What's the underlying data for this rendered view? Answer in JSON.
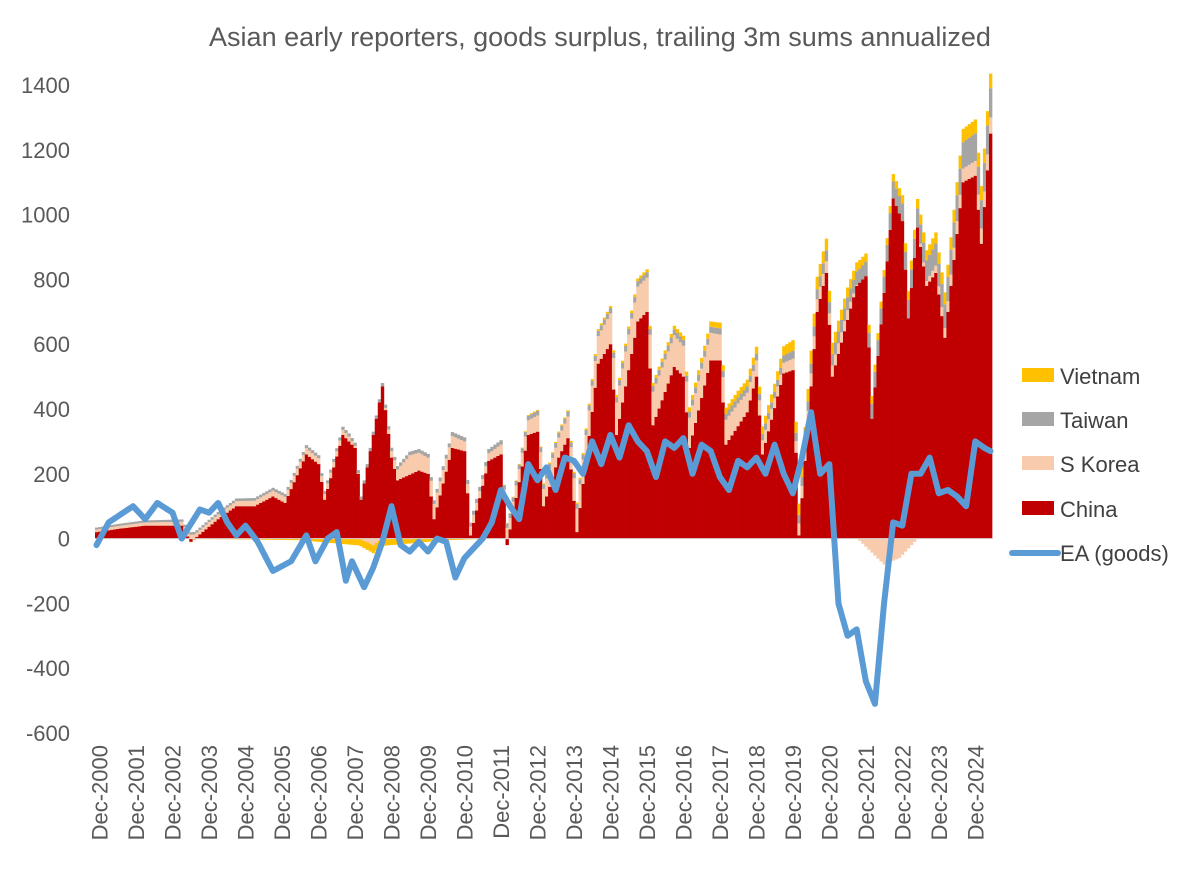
{
  "chart_data": {
    "type": "bar",
    "title": "Asian early reporters, goods surplus, trailing 3m sums annualized",
    "xlabel": "",
    "ylabel": "",
    "ylim": [
      -600,
      1400
    ],
    "yticks": [
      -600,
      -400,
      -200,
      0,
      200,
      400,
      600,
      800,
      1000,
      1200,
      1400
    ],
    "x_start": "2000-11",
    "x_end": "2025-05",
    "x_tick_labels": [
      "Dec-2000",
      "Dec-2001",
      "Dec-2002",
      "Dec-2003",
      "Dec-2004",
      "Dec-2005",
      "Dec-2006",
      "Dec-2007",
      "Dec-2008",
      "Dec-2009",
      "Dec-2010",
      "Dec-2011",
      "Dec-2012",
      "Dec-2013",
      "Dec-2014",
      "Dec-2015",
      "Dec-2016",
      "Dec-2017",
      "Dec-2018",
      "Dec-2019",
      "Dec-2020",
      "Dec-2021",
      "Dec-2022",
      "Dec-2023",
      "Dec-2024"
    ],
    "grid": false,
    "legend_position": "right",
    "stacked_series": [
      {
        "name": "China",
        "color": "#C00000",
        "anchors": [
          [
            "2000-11",
            20
          ],
          [
            "2001-06",
            30
          ],
          [
            "2002-03",
            40
          ],
          [
            "2003-03",
            40
          ],
          [
            "2003-06",
            -10
          ],
          [
            "2004-03",
            60
          ],
          [
            "2004-09",
            100
          ],
          [
            "2005-03",
            100
          ],
          [
            "2005-09",
            130
          ],
          [
            "2006-01",
            110
          ],
          [
            "2006-08",
            260
          ],
          [
            "2006-12",
            230
          ],
          [
            "2007-02",
            120
          ],
          [
            "2007-08",
            320
          ],
          [
            "2007-12",
            280
          ],
          [
            "2008-02",
            120
          ],
          [
            "2008-09",
            470
          ],
          [
            "2008-12",
            250
          ],
          [
            "2009-02",
            180
          ],
          [
            "2009-09",
            210
          ],
          [
            "2009-12",
            200
          ],
          [
            "2010-02",
            60
          ],
          [
            "2010-08",
            280
          ],
          [
            "2010-12",
            270
          ],
          [
            "2011-02",
            10
          ],
          [
            "2011-08",
            240
          ],
          [
            "2011-12",
            260
          ],
          [
            "2012-02",
            -20
          ],
          [
            "2012-09",
            320
          ],
          [
            "2012-12",
            330
          ],
          [
            "2013-02",
            100
          ],
          [
            "2013-07",
            250
          ],
          [
            "2013-10",
            310
          ],
          [
            "2014-01",
            20
          ],
          [
            "2014-08",
            540
          ],
          [
            "2014-12",
            600
          ],
          [
            "2015-02",
            320
          ],
          [
            "2015-09",
            670
          ],
          [
            "2015-12",
            700
          ],
          [
            "2016-02",
            350
          ],
          [
            "2016-09",
            530
          ],
          [
            "2016-12",
            500
          ],
          [
            "2017-02",
            280
          ],
          [
            "2017-09",
            550
          ],
          [
            "2017-12",
            550
          ],
          [
            "2018-02",
            290
          ],
          [
            "2018-09",
            390
          ],
          [
            "2018-12",
            500
          ],
          [
            "2019-02",
            260
          ],
          [
            "2019-09",
            510
          ],
          [
            "2019-12",
            520
          ],
          [
            "2020-02",
            10
          ],
          [
            "2020-08",
            700
          ],
          [
            "2020-11",
            820
          ],
          [
            "2021-01",
            500
          ],
          [
            "2021-09",
            780
          ],
          [
            "2021-12",
            810
          ],
          [
            "2022-02",
            370
          ],
          [
            "2022-09",
            1050
          ],
          [
            "2022-12",
            980
          ],
          [
            "2023-02",
            680
          ],
          [
            "2023-05",
            960
          ],
          [
            "2023-08",
            780
          ],
          [
            "2023-11",
            820
          ],
          [
            "2024-02",
            620
          ],
          [
            "2024-08",
            1100
          ],
          [
            "2024-12",
            1120
          ],
          [
            "2025-02",
            910
          ],
          [
            "2025-05",
            1250
          ]
        ]
      },
      {
        "name": "S Korea",
        "color": "#F8CBAD",
        "anchors": [
          [
            "2000-11",
            8
          ],
          [
            "2002-06",
            10
          ],
          [
            "2004-06",
            15
          ],
          [
            "2006-06",
            20
          ],
          [
            "2007-10",
            15
          ],
          [
            "2008-06",
            -20
          ],
          [
            "2008-12",
            20
          ],
          [
            "2009-06",
            60
          ],
          [
            "2010-06",
            40
          ],
          [
            "2011-06",
            20
          ],
          [
            "2012-06",
            40
          ],
          [
            "2013-06",
            60
          ],
          [
            "2014-06",
            80
          ],
          [
            "2015-06",
            110
          ],
          [
            "2016-06",
            100
          ],
          [
            "2017-06",
            90
          ],
          [
            "2018-06",
            70
          ],
          [
            "2019-06",
            30
          ],
          [
            "2020-06",
            40
          ],
          [
            "2021-06",
            30
          ],
          [
            "2022-06",
            -80
          ],
          [
            "2022-11",
            -60
          ],
          [
            "2023-06",
            10
          ],
          [
            "2024-06",
            40
          ],
          [
            "2025-05",
            50
          ]
        ]
      },
      {
        "name": "Taiwan",
        "color": "#A5A5A5",
        "anchors": [
          [
            "2000-11",
            6
          ],
          [
            "2004-06",
            8
          ],
          [
            "2008-06",
            10
          ],
          [
            "2012-06",
            14
          ],
          [
            "2016-06",
            18
          ],
          [
            "2019-06",
            20
          ],
          [
            "2020-06",
            30
          ],
          [
            "2021-06",
            40
          ],
          [
            "2022-06",
            50
          ],
          [
            "2023-06",
            60
          ],
          [
            "2024-06",
            80
          ],
          [
            "2025-05",
            90
          ]
        ]
      },
      {
        "name": "Vietnam",
        "color": "#FFC000",
        "anchors": [
          [
            "2000-11",
            0
          ],
          [
            "2004-06",
            -2
          ],
          [
            "2006-06",
            -5
          ],
          [
            "2008-06",
            -25
          ],
          [
            "2010-06",
            -5
          ],
          [
            "2012-06",
            2
          ],
          [
            "2014-06",
            5
          ],
          [
            "2016-06",
            10
          ],
          [
            "2018-06",
            20
          ],
          [
            "2019-06",
            25
          ],
          [
            "2020-06",
            40
          ],
          [
            "2021-06",
            30
          ],
          [
            "2022-06",
            20
          ],
          [
            "2023-06",
            30
          ],
          [
            "2024-06",
            40
          ],
          [
            "2025-05",
            45
          ]
        ]
      }
    ],
    "line_series": [
      {
        "name": "EA (goods)",
        "color": "#5B9BD5",
        "points": [
          [
            "2000-11",
            -20
          ],
          [
            "2001-03",
            50
          ],
          [
            "2001-11",
            100
          ],
          [
            "2002-03",
            60
          ],
          [
            "2002-07",
            110
          ],
          [
            "2002-12",
            80
          ],
          [
            "2003-03",
            0
          ],
          [
            "2003-09",
            90
          ],
          [
            "2003-12",
            80
          ],
          [
            "2004-03",
            110
          ],
          [
            "2004-06",
            50
          ],
          [
            "2004-09",
            10
          ],
          [
            "2004-12",
            40
          ],
          [
            "2005-04",
            -10
          ],
          [
            "2005-09",
            -100
          ],
          [
            "2006-03",
            -70
          ],
          [
            "2006-08",
            10
          ],
          [
            "2006-11",
            -70
          ],
          [
            "2007-03",
            0
          ],
          [
            "2007-06",
            20
          ],
          [
            "2007-09",
            -130
          ],
          [
            "2007-11",
            -70
          ],
          [
            "2008-03",
            -150
          ],
          [
            "2008-06",
            -90
          ],
          [
            "2008-09",
            -10
          ],
          [
            "2008-12",
            100
          ],
          [
            "2009-03",
            -20
          ],
          [
            "2009-06",
            -40
          ],
          [
            "2009-09",
            -10
          ],
          [
            "2009-12",
            -40
          ],
          [
            "2010-03",
            0
          ],
          [
            "2010-06",
            -10
          ],
          [
            "2010-09",
            -120
          ],
          [
            "2010-12",
            -60
          ],
          [
            "2011-03",
            -30
          ],
          [
            "2011-06",
            0
          ],
          [
            "2011-09",
            50
          ],
          [
            "2011-12",
            150
          ],
          [
            "2012-03",
            100
          ],
          [
            "2012-06",
            60
          ],
          [
            "2012-09",
            230
          ],
          [
            "2012-12",
            180
          ],
          [
            "2013-03",
            220
          ],
          [
            "2013-06",
            150
          ],
          [
            "2013-09",
            250
          ],
          [
            "2013-12",
            240
          ],
          [
            "2014-03",
            200
          ],
          [
            "2014-06",
            300
          ],
          [
            "2014-09",
            230
          ],
          [
            "2014-12",
            320
          ],
          [
            "2015-03",
            250
          ],
          [
            "2015-06",
            350
          ],
          [
            "2015-09",
            300
          ],
          [
            "2015-12",
            270
          ],
          [
            "2016-03",
            190
          ],
          [
            "2016-06",
            300
          ],
          [
            "2016-09",
            280
          ],
          [
            "2016-12",
            310
          ],
          [
            "2017-03",
            200
          ],
          [
            "2017-06",
            290
          ],
          [
            "2017-09",
            270
          ],
          [
            "2017-12",
            190
          ],
          [
            "2018-03",
            150
          ],
          [
            "2018-06",
            240
          ],
          [
            "2018-09",
            220
          ],
          [
            "2018-12",
            250
          ],
          [
            "2019-03",
            200
          ],
          [
            "2019-06",
            290
          ],
          [
            "2019-09",
            200
          ],
          [
            "2019-12",
            140
          ],
          [
            "2020-03",
            250
          ],
          [
            "2020-06",
            390
          ],
          [
            "2020-09",
            200
          ],
          [
            "2020-12",
            230
          ],
          [
            "2021-03",
            -200
          ],
          [
            "2021-06",
            -300
          ],
          [
            "2021-09",
            -280
          ],
          [
            "2021-12",
            -440
          ],
          [
            "2022-03",
            -510
          ],
          [
            "2022-06",
            -200
          ],
          [
            "2022-09",
            50
          ],
          [
            "2022-12",
            40
          ],
          [
            "2023-03",
            200
          ],
          [
            "2023-06",
            200
          ],
          [
            "2023-09",
            250
          ],
          [
            "2023-12",
            140
          ],
          [
            "2024-03",
            150
          ],
          [
            "2024-06",
            130
          ],
          [
            "2024-09",
            100
          ],
          [
            "2024-12",
            300
          ],
          [
            "2025-03",
            280
          ],
          [
            "2025-05",
            270
          ]
        ]
      }
    ],
    "legend": [
      {
        "label": "Vietnam",
        "kind": "bar",
        "color": "#FFC000"
      },
      {
        "label": "Taiwan",
        "kind": "bar",
        "color": "#A5A5A5"
      },
      {
        "label": "S Korea",
        "kind": "bar",
        "color": "#F8CBAD"
      },
      {
        "label": "China",
        "kind": "bar",
        "color": "#C00000"
      },
      {
        "label": "EA (goods)",
        "kind": "line",
        "color": "#5B9BD5"
      }
    ],
    "colors": {
      "text": "#595959",
      "legend_text": "#404040",
      "axis_line": "#D9D9D9",
      "background": "#FFFFFF"
    }
  }
}
